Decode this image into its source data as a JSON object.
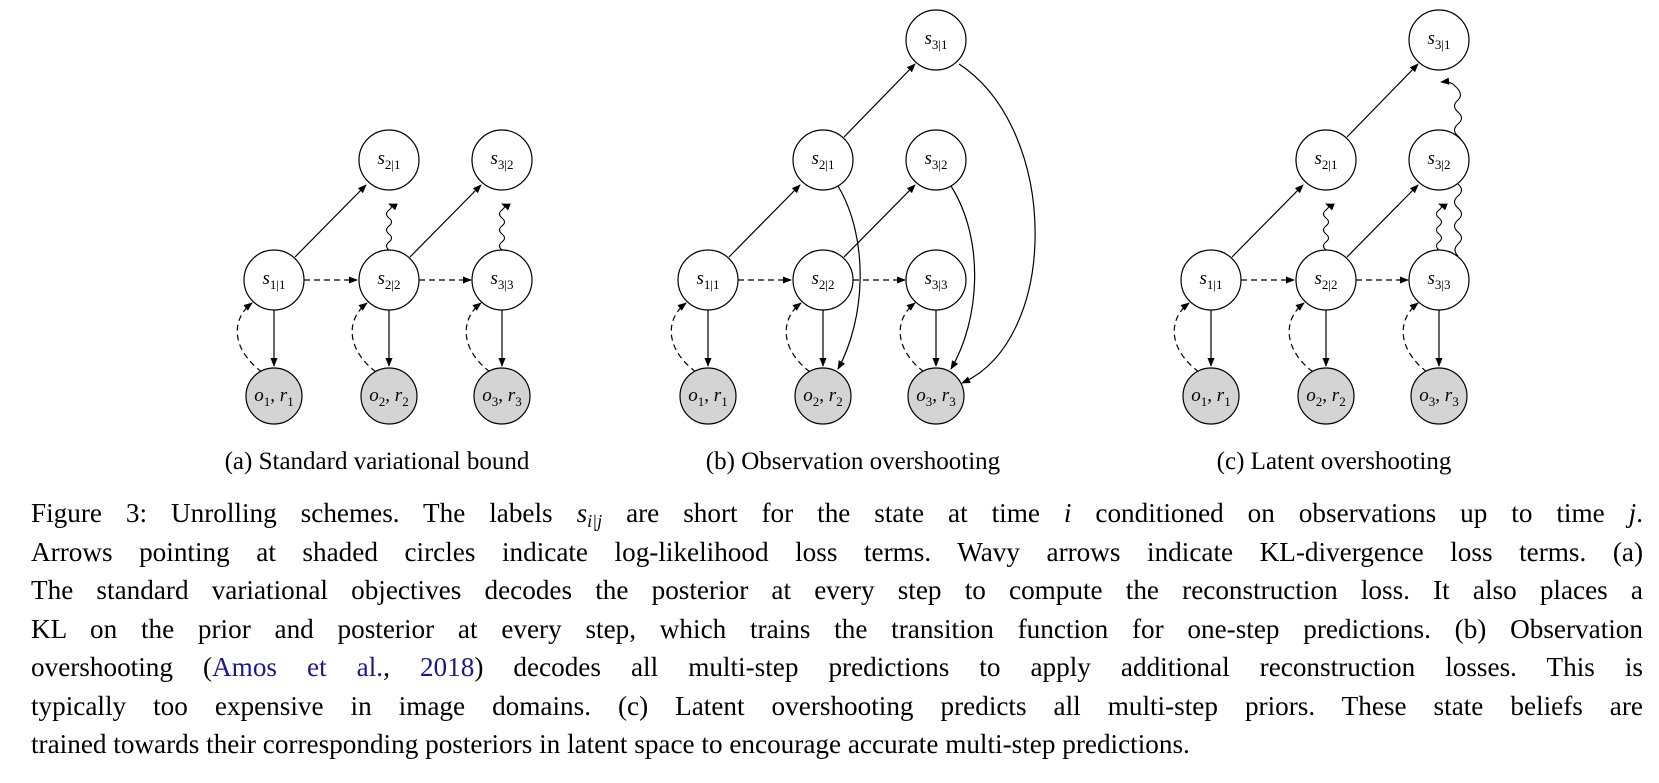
{
  "colors": {
    "shaded_node": "#d4d4d4",
    "link": "#1a1a8c",
    "stroke": "#000000"
  },
  "node_labels": {
    "s11": "1|1",
    "s21": "2|1",
    "s22": "2|2",
    "s31": "3|1",
    "s32": "3|2",
    "s33": "3|3",
    "o1": "1",
    "r1": "1",
    "o2": "2",
    "r2": "2",
    "o3": "3",
    "r3": "3"
  },
  "subfigures": [
    {
      "label": "(a) Standard variational bound"
    },
    {
      "label": "(b) Observation overshooting"
    },
    {
      "label": "(c) Latent overshooting"
    }
  ],
  "caption": {
    "prefix": "Figure 3: Unrolling schemes. The labels ",
    "sym_s": "s",
    "sym_sub": "i|j",
    "mid1": " are short for the state at time ",
    "sym_i": "i",
    "mid2": " conditioned on observations up to time ",
    "sym_j": "j",
    "end1": ".",
    "line2": "Arrows pointing at shaded circles indicate log-likelihood loss terms. Wavy arrows indicate KL-divergence loss terms. (a)",
    "line3": "The standard variational objectives decodes the posterior at every step to compute the reconstruction loss. It also places a",
    "line4": "KL on the prior and posterior at every step, which trains the transition function for one-step predictions. (b) Observation",
    "line5_a": "overshooting (",
    "cite_authors": "Amos et al.",
    "cite_sep": ", ",
    "cite_year": "2018",
    "line5_b": ") decodes all multi-step predictions to apply additional reconstruction losses.  This is",
    "line6": "typically too expensive in image domains.  (c) Latent overshooting predicts all multi-step priors.  These state beliefs are",
    "line7": "trained towards their corresponding posteriors in latent space to encourage accurate multi-step predictions."
  }
}
